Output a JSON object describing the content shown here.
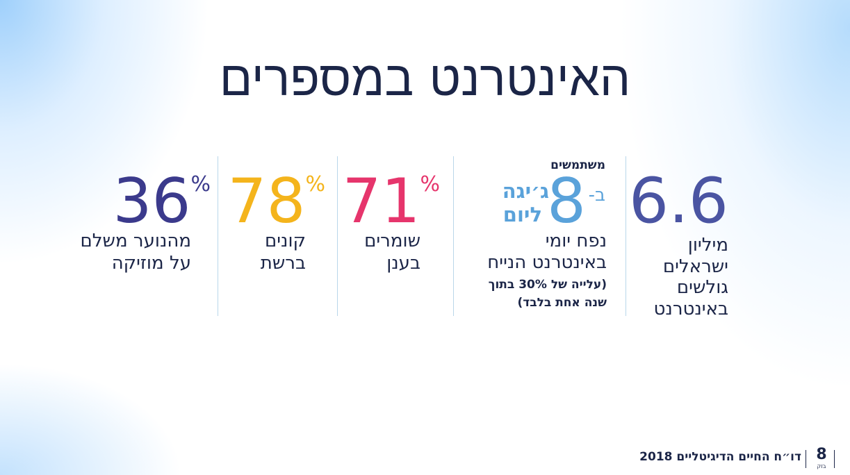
{
  "title": "האינטרנט במספרים",
  "stats": [
    {
      "value": "6.6",
      "color": "#4a54a2",
      "lines": [
        "מיליון",
        "ישראלים",
        "גולשים",
        "באינטרנט"
      ]
    },
    {
      "label_top": "משתמשים",
      "prefix": "ב-",
      "value": "8",
      "unit_lines": [
        "ג׳יגה",
        "ליום"
      ],
      "color": "#5aa2da",
      "lines": [
        "נפח יומי",
        "באינטרנט הנייח"
      ],
      "note_lines": [
        "(עלייה של 30% בתוך",
        "שנה אחת בלבד)"
      ]
    },
    {
      "value": "71",
      "unit": "%",
      "color": "#e6356c",
      "lines": [
        "שומרים",
        "בענן"
      ]
    },
    {
      "value": "78",
      "unit": "%",
      "color": "#f4b41c",
      "lines": [
        "קונים",
        "ברשת"
      ]
    },
    {
      "value": "36",
      "unit": "%",
      "color": "#3b3a8c",
      "lines": [
        "מהנוער משלם",
        "על מוזיקה"
      ]
    }
  ],
  "footer": {
    "text": "דו״ח החיים הדיגיטליים 2018",
    "logo": "8",
    "logo_caption": "בזק"
  }
}
